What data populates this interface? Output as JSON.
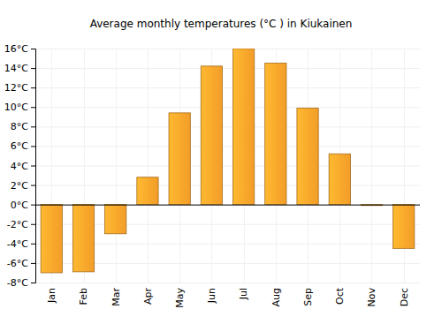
{
  "chart_data": {
    "type": "bar",
    "title": "Average monthly temperatures (°C ) in Kiukainen",
    "categories": [
      "Jan",
      "Feb",
      "Mar",
      "Apr",
      "May",
      "Jun",
      "Jul",
      "Aug",
      "Sep",
      "Oct",
      "Nov",
      "Dec"
    ],
    "values": [
      -7.0,
      -6.9,
      -3.0,
      2.8,
      9.4,
      14.2,
      16.0,
      14.5,
      9.9,
      5.2,
      -0.1,
      -4.5
    ],
    "color": "#ffa62b",
    "ylim": [
      -8,
      16
    ],
    "yticks": [
      {
        "value": -8,
        "label": "-8°C"
      },
      {
        "value": -6,
        "label": "-6°C"
      },
      {
        "value": -4,
        "label": "-4°C"
      },
      {
        "value": -2,
        "label": "-2°C"
      },
      {
        "value": 0,
        "label": "0°C"
      },
      {
        "value": 2,
        "label": "2°C"
      },
      {
        "value": 4,
        "label": "4°C"
      },
      {
        "value": 6,
        "label": "6°C"
      },
      {
        "value": 8,
        "label": "8°C"
      },
      {
        "value": 10,
        "label": "10°C"
      },
      {
        "value": 12,
        "label": "12°C"
      },
      {
        "value": 14,
        "label": "14°C"
      },
      {
        "value": 16,
        "label": "16°C"
      }
    ],
    "grid": true
  }
}
